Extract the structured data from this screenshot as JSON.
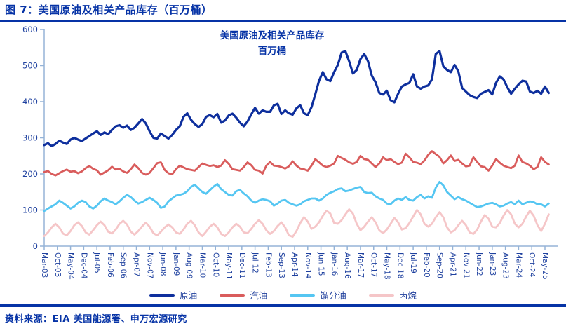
{
  "header": {
    "title": "图 7：美国原油及相关产品库存（百万桶）"
  },
  "footer": {
    "source": "资料来源：EIA 美国能源署、申万宏源研究"
  },
  "colors": {
    "heading": "#0633a6",
    "rule": "#0633a6",
    "axis": "#95b3d7",
    "tick_label": "#1f419f",
    "legend_label": "#1f3f9c",
    "crude": "#0e2f9d",
    "gasoline": "#d95c5c",
    "distillate": "#55c6f2",
    "propane": "#f5c6c8"
  },
  "chart_data": {
    "type": "line",
    "title": "美国原油及相关产品库存",
    "subtitle": "百万桶",
    "ylabel": "",
    "xlabel": "",
    "ylim": [
      0,
      600
    ],
    "yticks": [
      0,
      100,
      200,
      300,
      400,
      500,
      600
    ],
    "grid": false,
    "legend_position": "bottom",
    "x_start_month": "Mar-03",
    "x_step_months_between_points": 2,
    "xtick_interval_months": 7,
    "xtick_labels": [
      "Mar-03",
      "Oct-03",
      "May-04",
      "Dec-04",
      "Jul-05",
      "Feb-06",
      "Sep-06",
      "Apr-07",
      "Nov-07",
      "Jun-08",
      "Jan-09",
      "Aug-09",
      "Mar-10",
      "Oct-10",
      "May-11",
      "Dec-11",
      "Jul-12",
      "Feb-13",
      "Sep-13",
      "Apr-14",
      "Nov-14",
      "Jun-15",
      "Jan-16",
      "Aug-16",
      "Mar-17",
      "Oct-17",
      "May-18",
      "Dec-18",
      "Jul-19",
      "Feb-20",
      "Sep-20",
      "Apr-21",
      "Nov-21",
      "Jun-22",
      "Jan-23",
      "Aug-23",
      "Mar-24",
      "Oct-24",
      "May-25"
    ],
    "series": [
      {
        "name": "原油",
        "color_key": "crude",
        "values": [
          280,
          285,
          277,
          283,
          292,
          287,
          283,
          295,
          300,
          295,
          291,
          298,
          305,
          312,
          318,
          308,
          315,
          310,
          322,
          332,
          335,
          328,
          334,
          322,
          328,
          340,
          352,
          340,
          318,
          300,
          298,
          312,
          305,
          298,
          308,
          322,
          332,
          358,
          368,
          350,
          338,
          330,
          338,
          358,
          363,
          357,
          366,
          342,
          348,
          362,
          367,
          356,
          342,
          332,
          345,
          365,
          383,
          367,
          376,
          372,
          372,
          390,
          394,
          366,
          376,
          368,
          364,
          382,
          390,
          368,
          363,
          385,
          420,
          458,
          482,
          462,
          457,
          482,
          502,
          536,
          540,
          512,
          478,
          488,
          518,
          532,
          512,
          472,
          454,
          424,
          420,
          430,
          404,
          398,
          422,
          442,
          448,
          452,
          476,
          442,
          436,
          442,
          445,
          462,
          532,
          540,
          498,
          488,
          482,
          502,
          484,
          438,
          428,
          418,
          413,
          410,
          422,
          427,
          432,
          420,
          452,
          470,
          462,
          440,
          422,
          436,
          448,
          458,
          456,
          428,
          424,
          430,
          422,
          442,
          424
        ]
      },
      {
        "name": "汽油",
        "color_key": "gasoline",
        "values": [
          205,
          208,
          200,
          196,
          202,
          208,
          212,
          206,
          208,
          202,
          207,
          216,
          222,
          214,
          210,
          198,
          204,
          210,
          220,
          212,
          214,
          207,
          203,
          213,
          226,
          216,
          203,
          198,
          203,
          216,
          230,
          232,
          211,
          202,
          199,
          213,
          223,
          218,
          213,
          211,
          209,
          219,
          229,
          225,
          222,
          224,
          219,
          223,
          238,
          228,
          213,
          211,
          209,
          219,
          232,
          224,
          211,
          209,
          201,
          223,
          233,
          223,
          222,
          219,
          215,
          221,
          235,
          223,
          215,
          213,
          209,
          223,
          241,
          232,
          223,
          219,
          223,
          229,
          250,
          244,
          239,
          232,
          228,
          233,
          250,
          241,
          239,
          229,
          219,
          229,
          246,
          238,
          241,
          233,
          227,
          231,
          256,
          246,
          233,
          231,
          227,
          237,
          253,
          263,
          255,
          247,
          229,
          238,
          251,
          236,
          239,
          229,
          221,
          223,
          246,
          233,
          221,
          219,
          209,
          223,
          241,
          231,
          223,
          219,
          216,
          223,
          251,
          233,
          229,
          223,
          213,
          219,
          246,
          233,
          226
        ]
      },
      {
        "name": "馏分油",
        "color_key": "distillate",
        "values": [
          97,
          104,
          110,
          116,
          126,
          120,
          112,
          104,
          110,
          120,
          126,
          122,
          110,
          104,
          112,
          124,
          132,
          126,
          122,
          116,
          124,
          134,
          142,
          136,
          126,
          118,
          122,
          128,
          134,
          128,
          120,
          106,
          110,
          124,
          132,
          140,
          142,
          145,
          152,
          164,
          170,
          160,
          150,
          145,
          155,
          165,
          172,
          158,
          150,
          142,
          140,
          152,
          156,
          146,
          138,
          126,
          120,
          126,
          130,
          128,
          124,
          112,
          118,
          126,
          128,
          120,
          116,
          112,
          116,
          124,
          128,
          132,
          132,
          126,
          132,
          142,
          148,
          152,
          158,
          160,
          152,
          154,
          158,
          162,
          164,
          150,
          147,
          148,
          138,
          132,
          128,
          118,
          116,
          126,
          132,
          128,
          136,
          128,
          126,
          136,
          142,
          132,
          138,
          134,
          162,
          178,
          168,
          150,
          140,
          130,
          136,
          130,
          126,
          120,
          114,
          108,
          110,
          114,
          118,
          120,
          116,
          110,
          112,
          118,
          122,
          116,
          126,
          116,
          120,
          124,
          122,
          116,
          116,
          110,
          118
        ]
      },
      {
        "name": "丙烷",
        "color_key": "propane",
        "values": [
          28,
          38,
          52,
          62,
          52,
          35,
          30,
          42,
          58,
          66,
          56,
          38,
          32,
          44,
          58,
          68,
          58,
          40,
          35,
          46,
          62,
          70,
          60,
          40,
          32,
          42,
          55,
          65,
          54,
          36,
          30,
          40,
          52,
          60,
          52,
          38,
          34,
          46,
          62,
          70,
          58,
          38,
          28,
          40,
          54,
          62,
          52,
          34,
          28,
          38,
          52,
          62,
          54,
          38,
          36,
          48,
          62,
          72,
          62,
          44,
          34,
          42,
          56,
          66,
          52,
          30,
          26,
          42,
          64,
          80,
          68,
          48,
          54,
          66,
          84,
          98,
          90,
          64,
          62,
          72,
          88,
          102,
          90,
          62,
          44,
          54,
          68,
          80,
          66,
          44,
          36,
          46,
          62,
          78,
          66,
          46,
          50,
          64,
          82,
          100,
          88,
          62,
          54,
          62,
          80,
          94,
          80,
          52,
          38,
          44,
          58,
          70,
          58,
          38,
          34,
          46,
          68,
          86,
          76,
          54,
          52,
          64,
          84,
          100,
          88,
          62,
          52,
          62,
          82,
          98,
          84,
          58,
          42,
          62,
          88
        ]
      }
    ]
  }
}
